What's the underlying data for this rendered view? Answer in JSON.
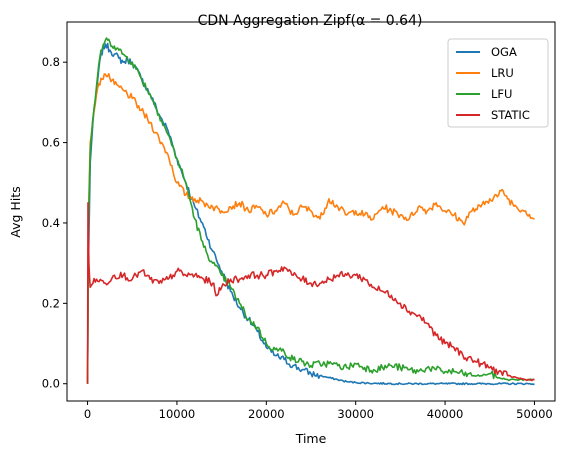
{
  "chart_data": {
    "type": "line",
    "title": "CDN Aggregation Zipf(α = 0.64)",
    "xlabel": "Time",
    "ylabel": "Avg Hits",
    "xlim": [
      -2300,
      52300
    ],
    "ylim": [
      -0.043,
      0.9
    ],
    "xticks": [
      0,
      10000,
      20000,
      30000,
      40000,
      50000
    ],
    "xtick_labels": [
      "0",
      "10000",
      "20000",
      "30000",
      "40000",
      "50000"
    ],
    "yticks": [
      0.0,
      0.2,
      0.4,
      0.6,
      0.8
    ],
    "ytick_labels": [
      "0.0",
      "0.2",
      "0.4",
      "0.6",
      "0.8"
    ],
    "grid": false,
    "legend_position": "top-right",
    "series": [
      {
        "name": "OGA",
        "color": "#1f77b4",
        "points": [
          [
            0,
            0.0
          ],
          [
            100,
            0.3
          ],
          [
            300,
            0.55
          ],
          [
            600,
            0.65
          ],
          [
            1000,
            0.73
          ],
          [
            1500,
            0.82
          ],
          [
            2000,
            0.845
          ],
          [
            2500,
            0.83
          ],
          [
            3000,
            0.82
          ],
          [
            3500,
            0.81
          ],
          [
            4000,
            0.8
          ],
          [
            4500,
            0.805
          ],
          [
            5000,
            0.8
          ],
          [
            6000,
            0.76
          ],
          [
            7000,
            0.72
          ],
          [
            8000,
            0.67
          ],
          [
            9000,
            0.63
          ],
          [
            10000,
            0.56
          ],
          [
            11000,
            0.5
          ],
          [
            12000,
            0.44
          ],
          [
            13000,
            0.39
          ],
          [
            14000,
            0.33
          ],
          [
            15000,
            0.28
          ],
          [
            16000,
            0.23
          ],
          [
            17000,
            0.19
          ],
          [
            18000,
            0.16
          ],
          [
            19000,
            0.13
          ],
          [
            20000,
            0.09
          ],
          [
            21000,
            0.07
          ],
          [
            22000,
            0.06
          ],
          [
            23000,
            0.045
          ],
          [
            24000,
            0.035
          ],
          [
            25000,
            0.025
          ],
          [
            26000,
            0.02
          ],
          [
            27000,
            0.015
          ],
          [
            28000,
            0.01
          ],
          [
            29000,
            0.005
          ],
          [
            30000,
            0.003
          ],
          [
            32000,
            0.001
          ],
          [
            35000,
            0.0
          ],
          [
            40000,
            0.0
          ],
          [
            45000,
            0.0
          ],
          [
            50000,
            0.0
          ]
        ]
      },
      {
        "name": "LRU",
        "color": "#ff7f0e",
        "points": [
          [
            0,
            0.0
          ],
          [
            100,
            0.4
          ],
          [
            300,
            0.6
          ],
          [
            600,
            0.66
          ],
          [
            1000,
            0.72
          ],
          [
            1500,
            0.76
          ],
          [
            2000,
            0.77
          ],
          [
            2500,
            0.76
          ],
          [
            3000,
            0.745
          ],
          [
            4000,
            0.73
          ],
          [
            5000,
            0.71
          ],
          [
            6000,
            0.68
          ],
          [
            7000,
            0.65
          ],
          [
            8000,
            0.61
          ],
          [
            9000,
            0.57
          ],
          [
            10000,
            0.5
          ],
          [
            11000,
            0.47
          ],
          [
            12000,
            0.46
          ],
          [
            13000,
            0.45
          ],
          [
            14000,
            0.44
          ],
          [
            15000,
            0.43
          ],
          [
            16000,
            0.44
          ],
          [
            17000,
            0.45
          ],
          [
            18000,
            0.43
          ],
          [
            19000,
            0.44
          ],
          [
            20000,
            0.42
          ],
          [
            21000,
            0.43
          ],
          [
            22000,
            0.45
          ],
          [
            23000,
            0.42
          ],
          [
            24000,
            0.44
          ],
          [
            25000,
            0.43
          ],
          [
            26000,
            0.41
          ],
          [
            27000,
            0.46
          ],
          [
            28000,
            0.44
          ],
          [
            29000,
            0.42
          ],
          [
            30000,
            0.43
          ],
          [
            31000,
            0.42
          ],
          [
            32000,
            0.41
          ],
          [
            33000,
            0.44
          ],
          [
            34000,
            0.43
          ],
          [
            35000,
            0.42
          ],
          [
            36000,
            0.41
          ],
          [
            37000,
            0.44
          ],
          [
            38000,
            0.43
          ],
          [
            39000,
            0.45
          ],
          [
            40000,
            0.43
          ],
          [
            41000,
            0.42
          ],
          [
            42000,
            0.4
          ],
          [
            43000,
            0.43
          ],
          [
            44000,
            0.44
          ],
          [
            45000,
            0.46
          ],
          [
            46000,
            0.47
          ],
          [
            46500,
            0.48
          ],
          [
            47000,
            0.46
          ],
          [
            48000,
            0.44
          ],
          [
            49000,
            0.43
          ],
          [
            50000,
            0.41
          ]
        ]
      },
      {
        "name": "LFU",
        "color": "#2ca02c",
        "points": [
          [
            0,
            0.0
          ],
          [
            100,
            0.4
          ],
          [
            300,
            0.58
          ],
          [
            600,
            0.66
          ],
          [
            1000,
            0.74
          ],
          [
            1500,
            0.83
          ],
          [
            2000,
            0.855
          ],
          [
            2500,
            0.85
          ],
          [
            3000,
            0.84
          ],
          [
            3500,
            0.83
          ],
          [
            4000,
            0.82
          ],
          [
            5000,
            0.8
          ],
          [
            6000,
            0.76
          ],
          [
            7000,
            0.72
          ],
          [
            8000,
            0.67
          ],
          [
            9000,
            0.62
          ],
          [
            10000,
            0.56
          ],
          [
            11000,
            0.5
          ],
          [
            12000,
            0.41
          ],
          [
            13000,
            0.34
          ],
          [
            14000,
            0.3
          ],
          [
            15000,
            0.27
          ],
          [
            16000,
            0.24
          ],
          [
            17000,
            0.2
          ],
          [
            18000,
            0.16
          ],
          [
            19000,
            0.14
          ],
          [
            20000,
            0.1
          ],
          [
            21000,
            0.085
          ],
          [
            22000,
            0.08
          ],
          [
            23000,
            0.06
          ],
          [
            24000,
            0.055
          ],
          [
            25000,
            0.045
          ],
          [
            26000,
            0.05
          ],
          [
            27000,
            0.05
          ],
          [
            28000,
            0.045
          ],
          [
            29000,
            0.04
          ],
          [
            30000,
            0.05
          ],
          [
            31000,
            0.04
          ],
          [
            32000,
            0.035
          ],
          [
            33000,
            0.04
          ],
          [
            34000,
            0.045
          ],
          [
            35000,
            0.04
          ],
          [
            36000,
            0.035
          ],
          [
            37000,
            0.03
          ],
          [
            38000,
            0.04
          ],
          [
            39000,
            0.035
          ],
          [
            40000,
            0.03
          ],
          [
            41000,
            0.03
          ],
          [
            42000,
            0.025
          ],
          [
            43000,
            0.02
          ],
          [
            44000,
            0.02
          ],
          [
            45000,
            0.025
          ],
          [
            46000,
            0.015
          ],
          [
            47000,
            0.01
          ],
          [
            48000,
            0.01
          ],
          [
            49000,
            0.01
          ],
          [
            50000,
            0.01
          ]
        ]
      },
      {
        "name": "STATIC",
        "color": "#d62728",
        "points": [
          [
            0,
            0.0
          ],
          [
            50,
            0.45
          ],
          [
            150,
            0.3
          ],
          [
            300,
            0.24
          ],
          [
            600,
            0.25
          ],
          [
            1000,
            0.26
          ],
          [
            2000,
            0.25
          ],
          [
            3000,
            0.27
          ],
          [
            4000,
            0.27
          ],
          [
            5000,
            0.26
          ],
          [
            6000,
            0.28
          ],
          [
            7000,
            0.26
          ],
          [
            8000,
            0.25
          ],
          [
            9000,
            0.26
          ],
          [
            10000,
            0.28
          ],
          [
            11000,
            0.27
          ],
          [
            12000,
            0.27
          ],
          [
            13000,
            0.26
          ],
          [
            14000,
            0.25
          ],
          [
            14500,
            0.22
          ],
          [
            15000,
            0.24
          ],
          [
            16000,
            0.26
          ],
          [
            17000,
            0.26
          ],
          [
            18000,
            0.27
          ],
          [
            19000,
            0.27
          ],
          [
            20000,
            0.27
          ],
          [
            21000,
            0.28
          ],
          [
            22000,
            0.29
          ],
          [
            23000,
            0.27
          ],
          [
            24000,
            0.26
          ],
          [
            25000,
            0.25
          ],
          [
            26000,
            0.25
          ],
          [
            27000,
            0.26
          ],
          [
            28000,
            0.27
          ],
          [
            29000,
            0.27
          ],
          [
            30000,
            0.27
          ],
          [
            31000,
            0.26
          ],
          [
            32000,
            0.24
          ],
          [
            33000,
            0.23
          ],
          [
            34000,
            0.22
          ],
          [
            35000,
            0.2
          ],
          [
            36000,
            0.18
          ],
          [
            37000,
            0.17
          ],
          [
            38000,
            0.15
          ],
          [
            39000,
            0.12
          ],
          [
            40000,
            0.1
          ],
          [
            41000,
            0.09
          ],
          [
            42000,
            0.07
          ],
          [
            43000,
            0.06
          ],
          [
            44000,
            0.05
          ],
          [
            45000,
            0.04
          ],
          [
            46000,
            0.03
          ],
          [
            47000,
            0.02
          ],
          [
            48000,
            0.015
          ],
          [
            49000,
            0.01
          ],
          [
            50000,
            0.01
          ]
        ]
      }
    ]
  }
}
